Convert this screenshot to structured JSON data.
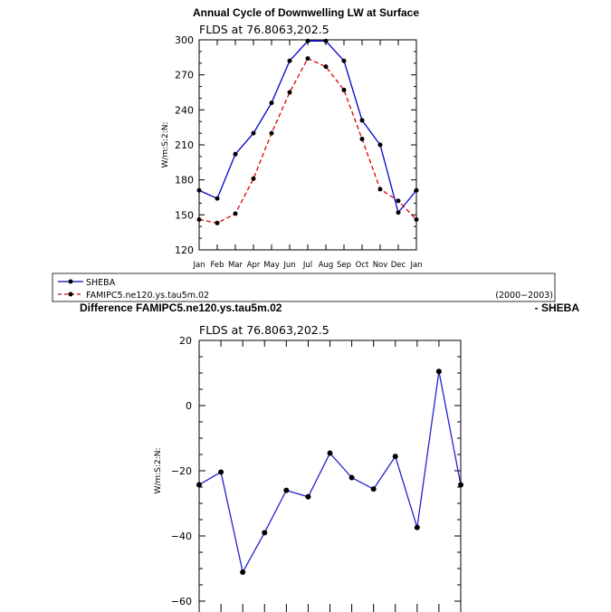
{
  "chart_data": [
    {
      "type": "line",
      "title": "Annual Cycle of Downwelling LW at Surface",
      "subtitle": "FLDS at 76.8063,202.5",
      "ylabel": "W/m:S:2:N:",
      "xlabel": "",
      "categories": [
        "Jan",
        "Feb",
        "Mar",
        "Apr",
        "May",
        "Jun",
        "Jul",
        "Aug",
        "Sep",
        "Oct",
        "Nov",
        "Dec",
        "Jan"
      ],
      "ylim": [
        120,
        300
      ],
      "yticks": [
        120,
        150,
        180,
        210,
        240,
        270,
        300
      ],
      "series": [
        {
          "name": "SHEBA",
          "color": "#0000cc",
          "style": "solid",
          "values": [
            171,
            164,
            202,
            220,
            246,
            282,
            299,
            299,
            282,
            231,
            210,
            152,
            171
          ]
        },
        {
          "name": "FAMIPC5.ne120.ys.tau5m.02",
          "color": "#dd0000",
          "style": "dashed",
          "values": [
            146,
            143,
            151,
            181,
            220,
            255,
            284,
            277,
            257,
            215,
            172,
            162,
            146
          ]
        }
      ],
      "legend": {
        "period": "(2000−2003)"
      }
    },
    {
      "type": "line",
      "title_left": "Difference FAMIPC5.ne120.ys.tau5m.02",
      "title_right": "- SHEBA",
      "subtitle": "FLDS at 76.8063,202.5",
      "ylabel": "W/m:S:2:N:",
      "ylim": [
        -60,
        20
      ],
      "yticks": [
        -60,
        -40,
        -20,
        0,
        20
      ],
      "ytick_labels": [
        "−60",
        "−40",
        "−20",
        "0",
        "20"
      ],
      "series": [
        {
          "name": "Difference",
          "color": "#2222cc",
          "values": [
            -24.3,
            -20.4,
            -51.1,
            -39.0,
            -26.0,
            -28.0,
            -14.6,
            -22.1,
            -25.6,
            -15.6,
            -37.4,
            10.5,
            -24.3
          ]
        }
      ]
    }
  ]
}
